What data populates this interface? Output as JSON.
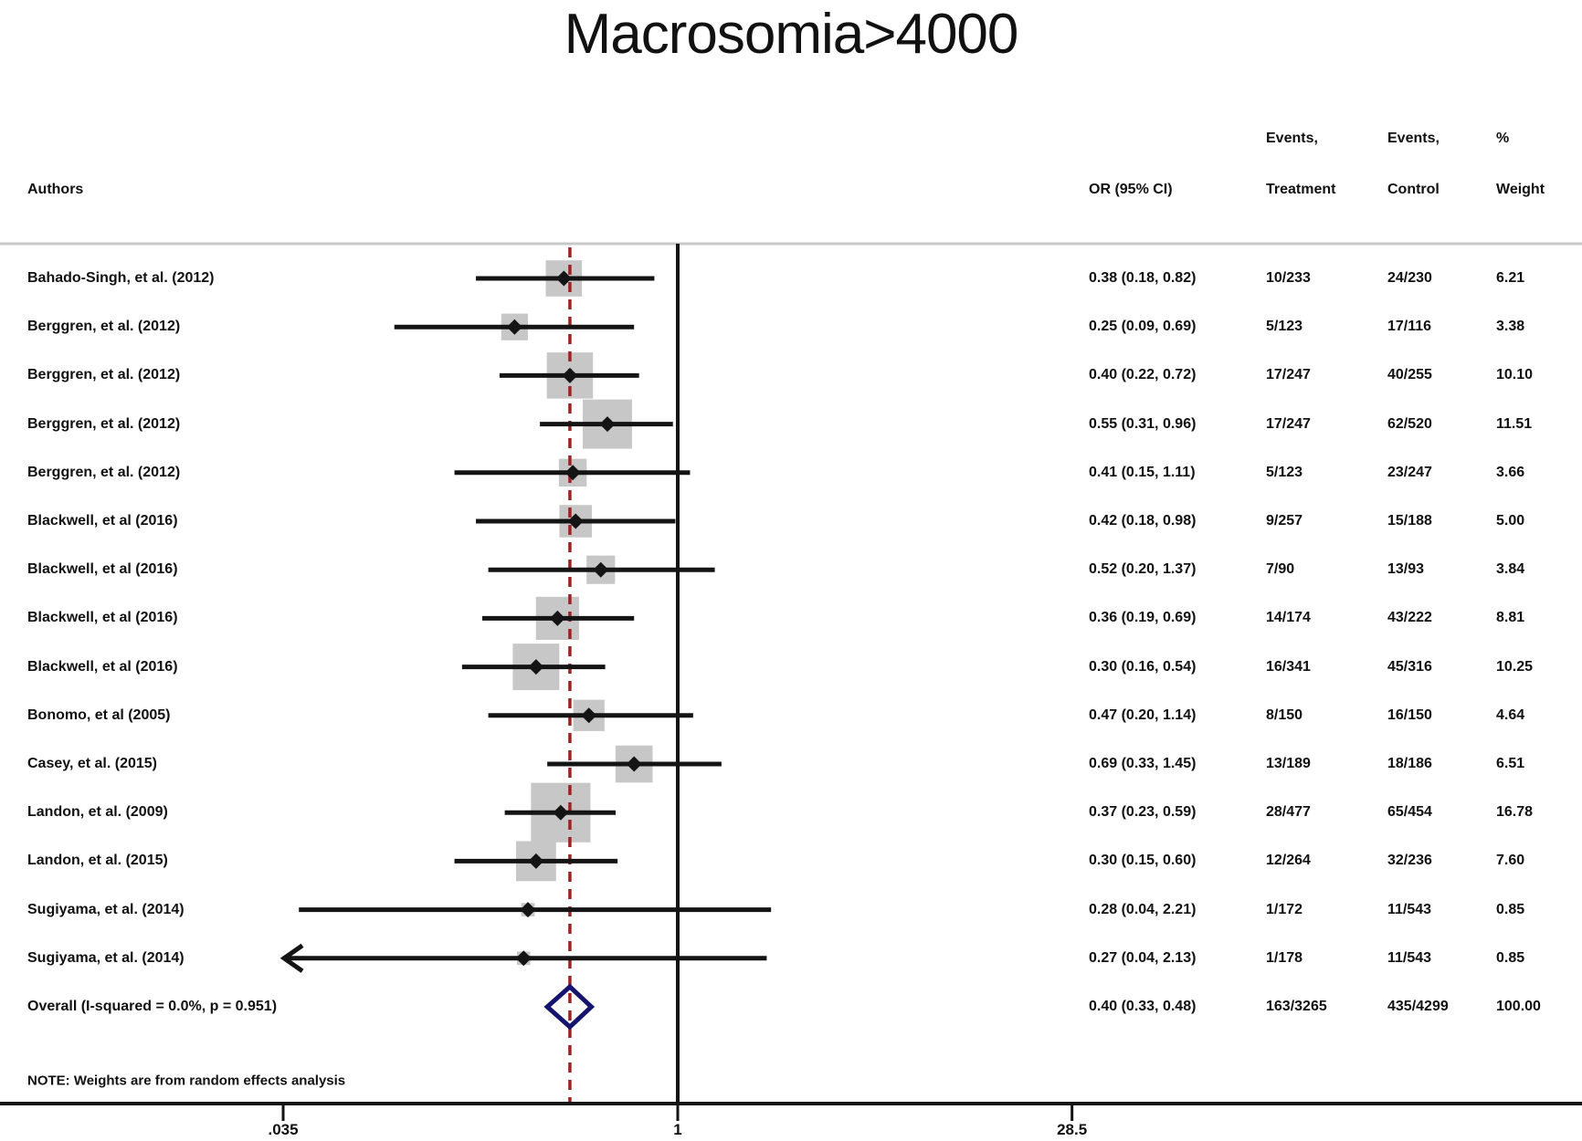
{
  "title": "Macrosomia>4000",
  "columns": {
    "authors": "Authors",
    "or_ci": "OR (95% CI)",
    "events": "Events,",
    "treatment": "Treatment",
    "control": "Control",
    "percent": "%",
    "weight": "Weight"
  },
  "note": "NOTE: Weights are from random effects analysis",
  "overall": {
    "label": "Overall  (I-squared = 0.0%, p = 0.951)",
    "or_ci": "0.40 (0.33, 0.48)",
    "or": 0.4,
    "lo": 0.33,
    "hi": 0.48,
    "treatment": "163/3265",
    "control": "435/4299",
    "weight_label": "100.00"
  },
  "chart_data": {
    "type": "forest",
    "title": "Macrosomia>4000",
    "x_axis": {
      "scale": "log",
      "ticks": [
        0.035,
        1,
        28.5
      ],
      "tick_labels": [
        ".035",
        "1",
        "28.5"
      ],
      "reference_line": 1,
      "pooled_dashed_line": 0.4
    },
    "studies": [
      {
        "author": "Bahado-Singh, et al. (2012)",
        "or": 0.38,
        "lo": 0.18,
        "hi": 0.82,
        "or_ci": "0.38 (0.18, 0.82)",
        "treatment": "10/233",
        "control": "24/230",
        "weight": 6.21,
        "weight_label": "6.21",
        "arrow_lo": false
      },
      {
        "author": "Berggren, et al. (2012)",
        "or": 0.25,
        "lo": 0.09,
        "hi": 0.69,
        "or_ci": "0.25 (0.09, 0.69)",
        "treatment": "5/123",
        "control": "17/116",
        "weight": 3.38,
        "weight_label": "3.38",
        "arrow_lo": false
      },
      {
        "author": "Berggren, et al. (2012)",
        "or": 0.4,
        "lo": 0.22,
        "hi": 0.72,
        "or_ci": "0.40 (0.22, 0.72)",
        "treatment": "17/247",
        "control": "40/255",
        "weight": 10.1,
        "weight_label": "10.10",
        "arrow_lo": false
      },
      {
        "author": "Berggren, et al. (2012)",
        "or": 0.55,
        "lo": 0.31,
        "hi": 0.96,
        "or_ci": "0.55 (0.31, 0.96)",
        "treatment": "17/247",
        "control": "62/520",
        "weight": 11.51,
        "weight_label": "11.51",
        "arrow_lo": false
      },
      {
        "author": "Berggren, et al. (2012)",
        "or": 0.41,
        "lo": 0.15,
        "hi": 1.11,
        "or_ci": "0.41 (0.15, 1.11)",
        "treatment": "5/123",
        "control": "23/247",
        "weight": 3.66,
        "weight_label": "3.66",
        "arrow_lo": false
      },
      {
        "author": "Blackwell, et al (2016)",
        "or": 0.42,
        "lo": 0.18,
        "hi": 0.98,
        "or_ci": "0.42 (0.18, 0.98)",
        "treatment": "9/257",
        "control": "15/188",
        "weight": 5.0,
        "weight_label": "5.00",
        "arrow_lo": false
      },
      {
        "author": "Blackwell, et al (2016)",
        "or": 0.52,
        "lo": 0.2,
        "hi": 1.37,
        "or_ci": "0.52 (0.20, 1.37)",
        "treatment": "7/90",
        "control": "13/93",
        "weight": 3.84,
        "weight_label": "3.84",
        "arrow_lo": false
      },
      {
        "author": "Blackwell, et al (2016)",
        "or": 0.36,
        "lo": 0.19,
        "hi": 0.69,
        "or_ci": "0.36 (0.19, 0.69)",
        "treatment": "14/174",
        "control": "43/222",
        "weight": 8.81,
        "weight_label": "8.81",
        "arrow_lo": false
      },
      {
        "author": "Blackwell, et al (2016)",
        "or": 0.3,
        "lo": 0.16,
        "hi": 0.54,
        "or_ci": "0.30 (0.16, 0.54)",
        "treatment": "16/341",
        "control": "45/316",
        "weight": 10.25,
        "weight_label": "10.25",
        "arrow_lo": false
      },
      {
        "author": "Bonomo, et al (2005)",
        "or": 0.47,
        "lo": 0.2,
        "hi": 1.14,
        "or_ci": "0.47 (0.20, 1.14)",
        "treatment": "8/150",
        "control": "16/150",
        "weight": 4.64,
        "weight_label": "4.64",
        "arrow_lo": false
      },
      {
        "author": "Casey, et al. (2015)",
        "or": 0.69,
        "lo": 0.33,
        "hi": 1.45,
        "or_ci": "0.69 (0.33, 1.45)",
        "treatment": "13/189",
        "control": "18/186",
        "weight": 6.51,
        "weight_label": "6.51",
        "arrow_lo": false
      },
      {
        "author": "Landon, et al. (2009)",
        "or": 0.37,
        "lo": 0.23,
        "hi": 0.59,
        "or_ci": "0.37 (0.23, 0.59)",
        "treatment": "28/477",
        "control": "65/454",
        "weight": 16.78,
        "weight_label": "16.78",
        "arrow_lo": false
      },
      {
        "author": "Landon, et al. (2015)",
        "or": 0.3,
        "lo": 0.15,
        "hi": 0.6,
        "or_ci": "0.30 (0.15, 0.60)",
        "treatment": "12/264",
        "control": "32/236",
        "weight": 7.6,
        "weight_label": "7.60",
        "arrow_lo": false
      },
      {
        "author": "Sugiyama, et al. (2014)",
        "or": 0.28,
        "lo": 0.04,
        "hi": 2.21,
        "or_ci": "0.28 (0.04, 2.21)",
        "treatment": "1/172",
        "control": "11/543",
        "weight": 0.85,
        "weight_label": "0.85",
        "arrow_lo": false
      },
      {
        "author": "Sugiyama, et al. (2014)",
        "or": 0.27,
        "lo": 0.04,
        "hi": 2.13,
        "or_ci": "0.27 (0.04, 2.13)",
        "treatment": "1/178",
        "control": "11/543",
        "weight": 0.85,
        "weight_label": "0.85",
        "arrow_lo": true
      }
    ]
  },
  "colors": {
    "text": "#111111",
    "line": "#141414",
    "square": "#c7c7c7",
    "dashed_ref": "#9b2423",
    "diamond": "#14146e",
    "separator": "#c8c8c8"
  }
}
